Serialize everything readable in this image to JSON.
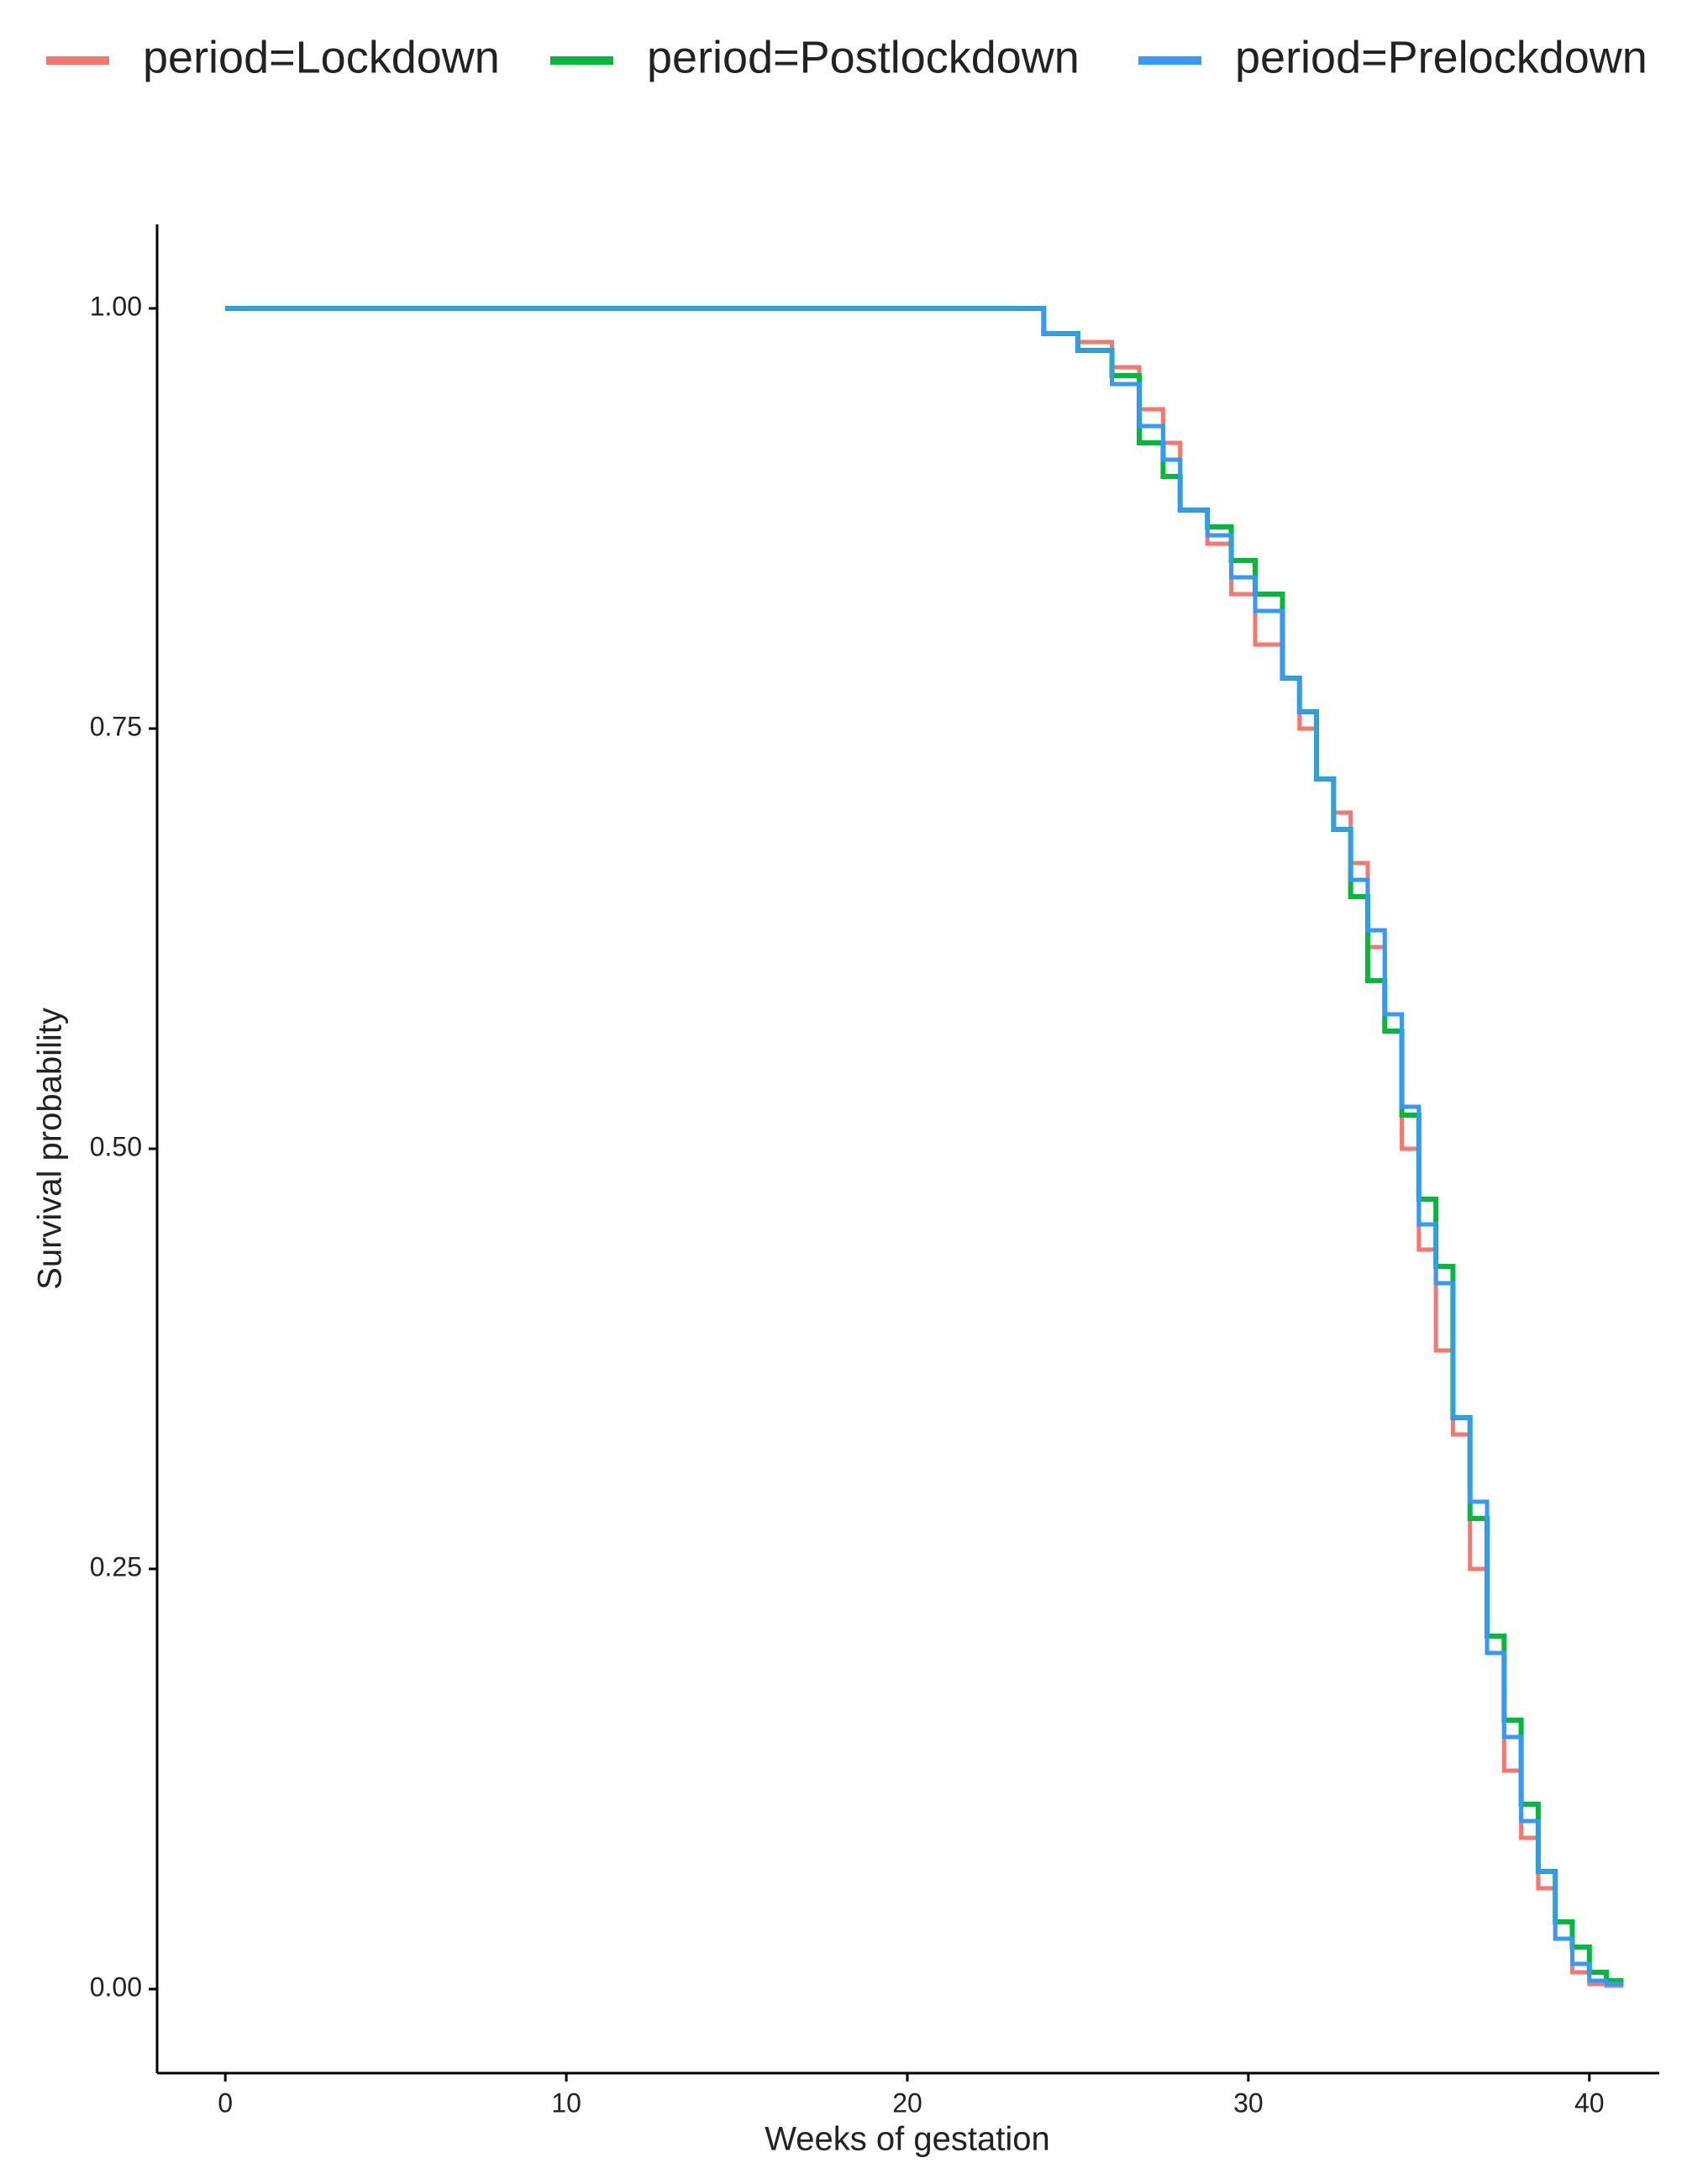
{
  "chart_data": {
    "type": "line",
    "xlabel": "Weeks of gestation",
    "ylabel": "Survival probability",
    "legend": "top",
    "x": [
      0,
      24,
      24,
      25,
      25,
      26,
      26,
      26.8,
      26.8,
      27.5,
      27.5,
      28,
      28,
      28.8,
      28.8,
      29.5,
      29.5,
      30.2,
      30.2,
      31,
      31,
      31.5,
      31.5,
      32,
      32,
      32.5,
      32.5,
      33,
      33,
      33.5,
      33.5,
      34,
      34,
      34.5,
      34.5,
      35,
      35,
      35.5,
      35.5,
      36,
      36,
      36.5,
      36.5,
      37,
      37,
      37.5,
      37.5,
      38,
      38,
      38.5,
      38.5,
      39,
      39,
      39.5,
      39.5,
      40,
      40,
      40.5,
      40.5,
      41
    ],
    "series": [
      {
        "name": "period=Lockdown",
        "color": "#F8766D",
        "values": [
          1,
          1,
          0.985,
          0.985,
          0.98,
          0.98,
          0.965,
          0.965,
          0.94,
          0.94,
          0.92,
          0.92,
          0.88,
          0.88,
          0.86,
          0.86,
          0.83,
          0.83,
          0.8,
          0.8,
          0.78,
          0.78,
          0.75,
          0.75,
          0.72,
          0.72,
          0.7,
          0.7,
          0.67,
          0.67,
          0.62,
          0.62,
          0.57,
          0.57,
          0.5,
          0.5,
          0.44,
          0.44,
          0.38,
          0.38,
          0.33,
          0.33,
          0.25,
          0.25,
          0.2,
          0.2,
          0.13,
          0.13,
          0.09,
          0.09,
          0.06,
          0.06,
          0.03,
          0.03,
          0.01,
          0.01,
          0.003,
          0.003,
          0.002,
          0.002
        ]
      },
      {
        "name": "period=Postlockdown",
        "color": "#00BA38",
        "values": [
          1,
          1,
          0.985,
          0.985,
          0.975,
          0.975,
          0.96,
          0.96,
          0.92,
          0.92,
          0.9,
          0.9,
          0.88,
          0.88,
          0.87,
          0.87,
          0.85,
          0.85,
          0.83,
          0.83,
          0.78,
          0.78,
          0.76,
          0.76,
          0.72,
          0.72,
          0.69,
          0.69,
          0.65,
          0.65,
          0.6,
          0.6,
          0.57,
          0.57,
          0.52,
          0.52,
          0.47,
          0.47,
          0.43,
          0.43,
          0.34,
          0.34,
          0.28,
          0.28,
          0.21,
          0.21,
          0.16,
          0.16,
          0.11,
          0.11,
          0.07,
          0.07,
          0.04,
          0.04,
          0.025,
          0.025,
          0.01,
          0.01,
          0.005,
          0.005
        ]
      },
      {
        "name": "period=Prelockdown",
        "color": "#3399FF",
        "values": [
          1,
          1,
          0.985,
          0.985,
          0.975,
          0.975,
          0.955,
          0.955,
          0.93,
          0.93,
          0.91,
          0.91,
          0.88,
          0.88,
          0.865,
          0.865,
          0.84,
          0.84,
          0.82,
          0.82,
          0.78,
          0.78,
          0.76,
          0.76,
          0.72,
          0.72,
          0.69,
          0.69,
          0.66,
          0.66,
          0.63,
          0.63,
          0.58,
          0.58,
          0.525,
          0.525,
          0.455,
          0.455,
          0.42,
          0.42,
          0.34,
          0.34,
          0.29,
          0.29,
          0.2,
          0.2,
          0.15,
          0.15,
          0.1,
          0.1,
          0.07,
          0.07,
          0.03,
          0.03,
          0.015,
          0.015,
          0.005,
          0.005,
          0.003,
          0.003
        ]
      }
    ],
    "xlim": [
      -2,
      42.05
    ],
    "ylim": [
      -0.05,
      1.05
    ],
    "xticks": [
      0,
      10,
      20,
      30,
      40
    ],
    "yticks": [
      {
        "value": 0,
        "label": "0.00"
      },
      {
        "value": 0.25,
        "label": "0.25"
      },
      {
        "value": 0.5,
        "label": "0.50"
      },
      {
        "value": 0.75,
        "label": "0.75"
      },
      {
        "value": 1,
        "label": "1.00"
      }
    ]
  }
}
